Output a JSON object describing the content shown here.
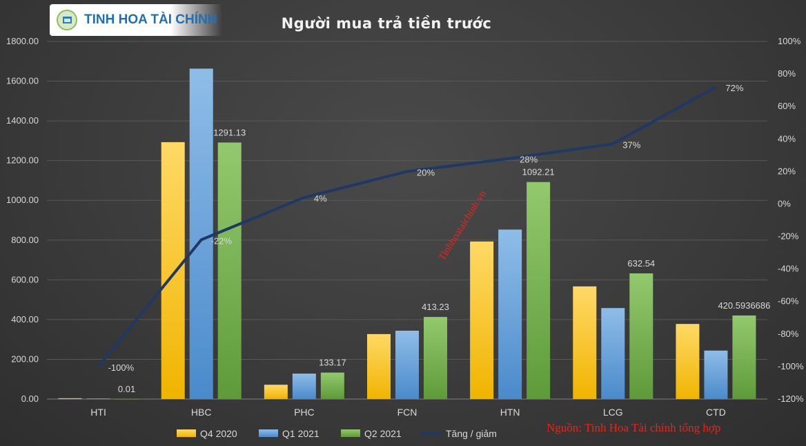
{
  "logo": {
    "text": "TINH HOA TÀI CHÍNH"
  },
  "watermark": "Tinhhoataichinh.vn",
  "source_note": "Nguồn: Tinh Hoa Tài chính tổng hợp",
  "colors": {
    "q4_2020": "#ffc000",
    "q1_2021": "#5b9bd5",
    "q2_2021": "#70ad47",
    "line": "#203864",
    "text": "#d9d9d9",
    "grid": "#595959"
  },
  "chart_data": {
    "type": "bar",
    "title": "Người mua trả tiền trước",
    "categories": [
      "HTI",
      "HBC",
      "PHC",
      "FCN",
      "HTN",
      "LCG",
      "CTD"
    ],
    "series": [
      {
        "name": "Q4 2020",
        "values": [
          4,
          1293,
          72,
          327,
          793,
          567,
          378
        ]
      },
      {
        "name": "Q1 2021",
        "values": [
          3,
          1663,
          128,
          344,
          853,
          458,
          244
        ]
      },
      {
        "name": "Q2 2021",
        "values": [
          0.01,
          1291.13,
          133.17,
          413.23,
          1092.21,
          632.54,
          420.5936686
        ],
        "data_labels": [
          "0.01",
          "1291.13",
          "133.17",
          "413.23",
          "1092.21",
          "632.54",
          "420.5936686"
        ]
      }
    ],
    "line_series": {
      "name": "Tăng / giảm",
      "values": [
        -100,
        -22,
        4,
        20,
        28,
        37,
        72
      ],
      "data_labels": [
        "-100%",
        "-22%",
        "4%",
        "20%",
        "28%",
        "37%",
        "72%"
      ]
    },
    "ylim": [
      0,
      1800
    ],
    "yticks": [
      0,
      200,
      400,
      600,
      800,
      1000,
      1200,
      1400,
      1600,
      1800
    ],
    "ytick_labels": [
      "0.00",
      "200.00",
      "400.00",
      "600.00",
      "800.00",
      "1000.00",
      "1200.00",
      "1400.00",
      "1600.00",
      "1800.00"
    ],
    "y2lim": [
      -120,
      100
    ],
    "y2ticks": [
      -120,
      -100,
      -80,
      -60,
      -40,
      -20,
      0,
      20,
      40,
      60,
      80,
      100
    ],
    "y2tick_labels": [
      "-120%",
      "-100%",
      "-80%",
      "-60%",
      "-40%",
      "-20%",
      "0%",
      "20%",
      "40%",
      "60%",
      "80%",
      "100%"
    ],
    "grid": true,
    "legend": "bottom"
  }
}
